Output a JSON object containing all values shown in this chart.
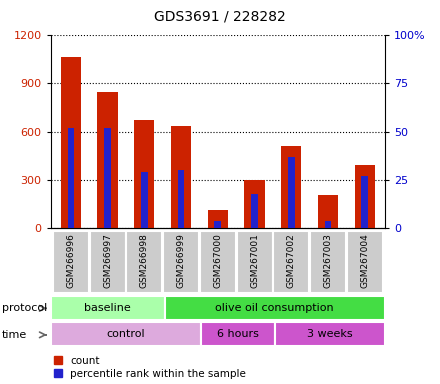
{
  "title": "GDS3691 / 228282",
  "samples": [
    "GSM266996",
    "GSM266997",
    "GSM266998",
    "GSM266999",
    "GSM267000",
    "GSM267001",
    "GSM267002",
    "GSM267003",
    "GSM267004"
  ],
  "counts": [
    1060,
    845,
    670,
    635,
    115,
    300,
    510,
    210,
    390
  ],
  "percentile_ranks": [
    52,
    52,
    29,
    30,
    4,
    18,
    37,
    4,
    27
  ],
  "ylim_left": [
    0,
    1200
  ],
  "ylim_right": [
    0,
    100
  ],
  "yticks_left": [
    0,
    300,
    600,
    900,
    1200
  ],
  "yticks_right": [
    0,
    25,
    50,
    75,
    100
  ],
  "ytick_labels_right": [
    "0",
    "25",
    "50",
    "75",
    "100%"
  ],
  "bar_color_red": "#cc2200",
  "bar_color_blue": "#2222cc",
  "protocol_groups": [
    {
      "label": "baseline",
      "start": 0,
      "end": 3,
      "color": "#aaffaa"
    },
    {
      "label": "olive oil consumption",
      "start": 3,
      "end": 9,
      "color": "#44dd44"
    }
  ],
  "time_groups": [
    {
      "label": "control",
      "start": 0,
      "end": 4,
      "color": "#ddaadd"
    },
    {
      "label": "6 hours",
      "start": 4,
      "end": 6,
      "color": "#cc55cc"
    },
    {
      "label": "3 weeks",
      "start": 6,
      "end": 9,
      "color": "#cc55cc"
    }
  ],
  "legend_count_label": "count",
  "legend_pct_label": "percentile rank within the sample",
  "axis_label_color_left": "#cc2200",
  "axis_label_color_right": "#0000cc",
  "background_color": "#ffffff",
  "tick_area_bg": "#cccccc"
}
